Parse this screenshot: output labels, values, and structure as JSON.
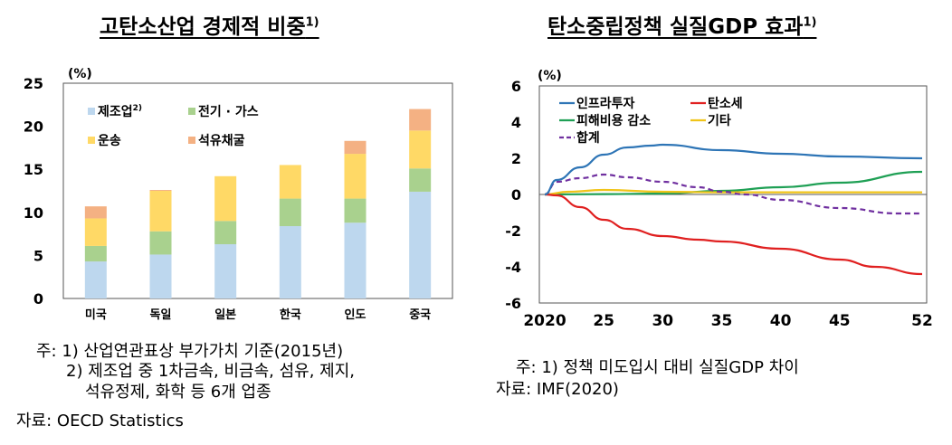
{
  "chart_data": [
    {
      "type": "bar",
      "stacked": true,
      "title": "고탄소산업 경제적 비중",
      "title_sup": "1)",
      "ylabel": "(%)",
      "ylim": [
        0,
        25
      ],
      "yticks": [
        0,
        5,
        10,
        15,
        20,
        25
      ],
      "grid": false,
      "legend": "top-left",
      "categories": [
        "미국",
        "독일",
        "일본",
        "한국",
        "인도",
        "중국"
      ],
      "series": [
        {
          "name": "제조업",
          "name_sup": "2)",
          "color": "#bdd7ee",
          "values": [
            4.3,
            5.1,
            6.3,
            8.4,
            8.8,
            12.4
          ]
        },
        {
          "name": "전기 · 가스",
          "color": "#a9d18e",
          "values": [
            1.8,
            2.7,
            2.7,
            3.2,
            2.8,
            2.7
          ]
        },
        {
          "name": "운송",
          "color": "#ffd966",
          "values": [
            3.2,
            4.7,
            5.2,
            3.9,
            5.2,
            4.4
          ]
        },
        {
          "name": "석유채굴",
          "color": "#f4b183",
          "values": [
            1.4,
            0.1,
            0,
            0,
            1.5,
            2.5
          ]
        }
      ]
    },
    {
      "type": "line",
      "title": "탄소중립정책 실질GDP 효과",
      "title_sup": "1)",
      "ylabel": "(%)",
      "ylim": [
        -6,
        6
      ],
      "yticks": [
        -6,
        -4,
        -2,
        0,
        2,
        4,
        6
      ],
      "xlim": [
        2020,
        2052
      ],
      "xticks": [
        2020,
        2025,
        2030,
        2035,
        2040,
        2045,
        2052
      ],
      "xtick_labels": [
        "2020",
        "25",
        "30",
        "35",
        "40",
        "45",
        "52"
      ],
      "grid": false,
      "legend": "top-left",
      "series": [
        {
          "name": "인프라투자",
          "color": "#2e75b6",
          "dash": false,
          "x": [
            2020,
            2021,
            2023,
            2025,
            2027,
            2029,
            2030,
            2035,
            2040,
            2045,
            2052
          ],
          "y": [
            0,
            0.8,
            1.5,
            2.2,
            2.6,
            2.7,
            2.75,
            2.45,
            2.25,
            2.1,
            2.0
          ]
        },
        {
          "name": "탄소세",
          "color": "#e02020",
          "dash": false,
          "x": [
            2020,
            2021,
            2023,
            2025,
            2027,
            2030,
            2033,
            2035,
            2040,
            2045,
            2048,
            2052
          ],
          "y": [
            0,
            -0.05,
            -0.7,
            -1.4,
            -1.9,
            -2.3,
            -2.5,
            -2.6,
            -3.0,
            -3.6,
            -4.0,
            -4.4
          ]
        },
        {
          "name": "피해비용 감소",
          "color": "#1fa055",
          "dash": false,
          "x": [
            2020,
            2025,
            2030,
            2035,
            2040,
            2045,
            2052
          ],
          "y": [
            0,
            0.02,
            0.05,
            0.2,
            0.4,
            0.65,
            1.25
          ]
        },
        {
          "name": "기타",
          "color": "#f0c419",
          "dash": false,
          "x": [
            2020,
            2022,
            2025,
            2030,
            2035,
            2052
          ],
          "y": [
            0,
            0.15,
            0.25,
            0.15,
            0.12,
            0.12
          ]
        },
        {
          "name": "합계",
          "color": "#7030a0",
          "dash": true,
          "x": [
            2020,
            2021,
            2023,
            2025,
            2027,
            2030,
            2033,
            2035,
            2037,
            2040,
            2045,
            2050,
            2052
          ],
          "y": [
            0,
            0.7,
            0.9,
            1.1,
            0.95,
            0.7,
            0.4,
            0.15,
            0,
            -0.3,
            -0.75,
            -1.05,
            -1.05
          ]
        }
      ]
    }
  ],
  "notes_left": [
    "주: 1) 산업연관표상 부가가치 기준(2015년)",
    "2) 제조업 중 1차금속, 비금속, 섬유, 제지,",
    "석유정제, 화학 등 6개 업종",
    "자료: OECD Statistics"
  ],
  "notes_right": [
    "주: 1) 정책 미도입시 대비 실질GDP 차이",
    "자료: IMF(2020)"
  ]
}
